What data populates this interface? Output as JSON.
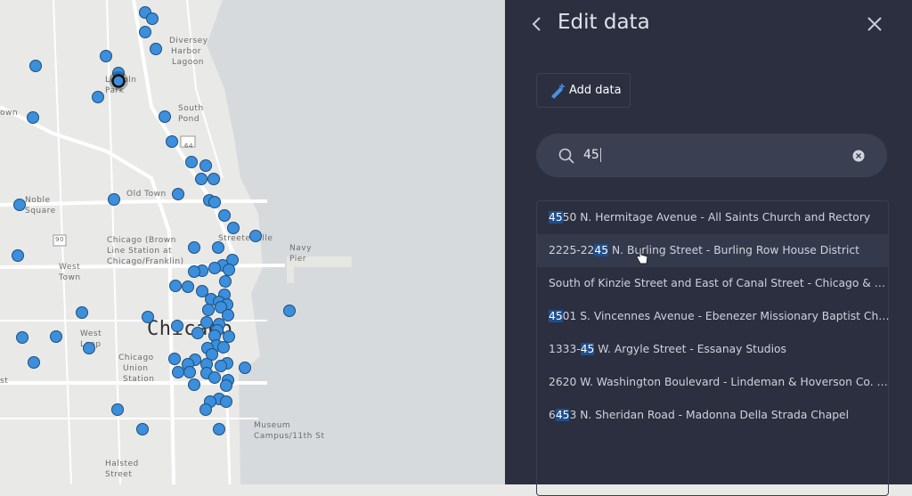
{
  "header": {
    "title": "Edit data"
  },
  "toolbar": {
    "add_button": "Add data"
  },
  "search": {
    "query": "45"
  },
  "results": [
    {
      "parts": [
        {
          "text": "45",
          "match": true
        },
        {
          "text": "50 N. Hermitage Avenue - All Saints Church and Rectory"
        }
      ]
    },
    {
      "parts": [
        {
          "text": "2225-22"
        },
        {
          "text": "45",
          "match": true
        },
        {
          "text": " N. Burling Street - Burling Row House District"
        }
      ],
      "hover": true
    },
    {
      "parts": [
        {
          "text": "South of Kinzie Street and East of Canal Street - Chicago & …"
        }
      ]
    },
    {
      "parts": [
        {
          "text": "45",
          "match": true
        },
        {
          "text": "01 S. Vincennes Avenue - Ebenezer Missionary Baptist Ch…"
        }
      ]
    },
    {
      "parts": [
        {
          "text": "1333-"
        },
        {
          "text": "45",
          "match": true
        },
        {
          "text": " W. Argyle Street - Essanay Studios"
        }
      ]
    },
    {
      "parts": [
        {
          "text": "2620 W. Washington Boulevard - Lindeman & Hoverson Co. …"
        }
      ]
    },
    {
      "parts": [
        {
          "text": "6"
        },
        {
          "text": "45",
          "match": true
        },
        {
          "text": "3 N. Sheridan Road - Madonna Della Strada Chapel"
        }
      ]
    }
  ],
  "map": {
    "labels": [
      "Diversey",
      "Harbor",
      "Lagoon",
      "Lincoln",
      "Park",
      "South",
      "Pond",
      "Old Town",
      "Noble",
      "Square",
      "Chicago (Brown",
      "Line Station at",
      "Chicago/Franklin)",
      "West",
      "Town",
      "Streeterville",
      "Navy",
      "Pier",
      "West",
      "Loop",
      "Chicago",
      "Union",
      "Station",
      "Chicago",
      "Museum",
      "Campus/11th St",
      "Halsted",
      "Street",
      "64",
      "90",
      "own",
      "st"
    ]
  }
}
